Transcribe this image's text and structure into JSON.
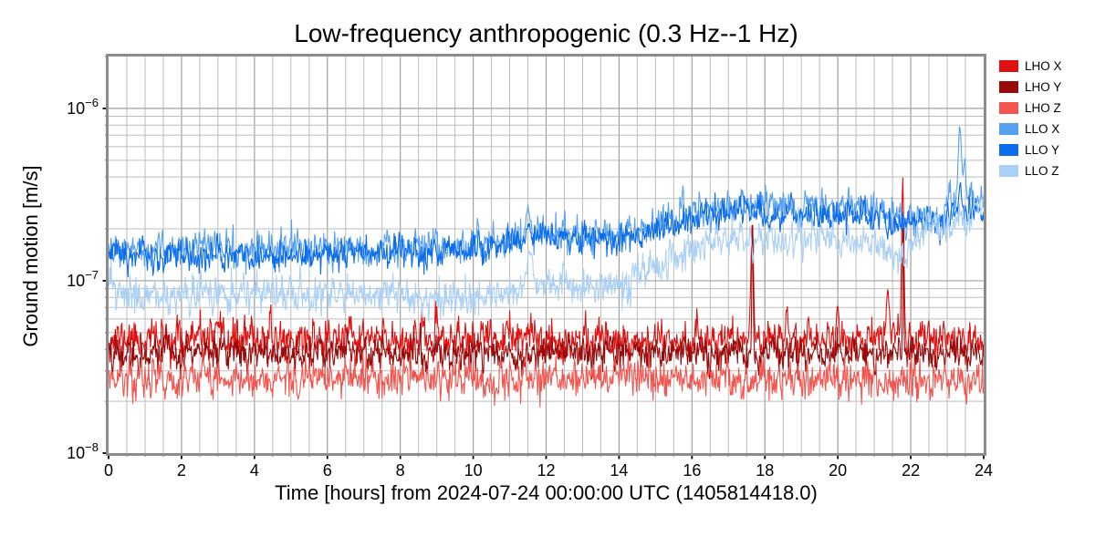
{
  "chart_data": {
    "type": "line",
    "title": "Low-frequency anthropogenic (0.3 Hz--1 Hz)",
    "xlabel": "Time [hours] from 2024-07-24 00:00:00 UTC (1405814418.0)",
    "ylabel": "Ground motion [m/s]",
    "x_range": [
      0,
      24
    ],
    "x_ticks": [
      0,
      2,
      4,
      6,
      8,
      10,
      12,
      14,
      16,
      18,
      20,
      22,
      24
    ],
    "x_minor_step": 0.5,
    "y_scale": "log",
    "ylim": [
      1e-08,
      2e-06
    ],
    "y_ticks": [
      {
        "value": 1e-08,
        "base": "10",
        "exp": "−8"
      },
      {
        "value": 1e-07,
        "base": "10",
        "exp": "−7"
      },
      {
        "value": 1e-06,
        "base": "10",
        "exp": "−6"
      }
    ],
    "grid": true,
    "legend_position": "outside-right",
    "frame_color": "#8c8c8c",
    "grid_minor_color": "#bdbdbd",
    "grid_major_color": "#a0a0a0",
    "samples_per_hour": 60,
    "series": [
      {
        "name": "LHO X",
        "color": "#e01111",
        "seed": 11,
        "noise_sigma_decades": 0.058,
        "envelope": [
          [
            0,
            4.6e-08
          ],
          [
            24,
            4.6e-08
          ]
        ],
        "spikes": [
          {
            "hour": 17.65,
            "peak": 2.2e-07,
            "width_hours": 0.05
          },
          {
            "hour": 18.6,
            "peak": 7e-08,
            "width_hours": 0.05
          },
          {
            "hour": 20.0,
            "peak": 7.5e-08,
            "width_hours": 0.04
          },
          {
            "hour": 21.37,
            "peak": 9.5e-08,
            "width_hours": 0.05
          },
          {
            "hour": 21.78,
            "peak": 3.6e-07,
            "width_hours": 0.045
          }
        ]
      },
      {
        "name": "LHO Y",
        "color": "#970b0b",
        "seed": 22,
        "noise_sigma_decades": 0.05,
        "envelope": [
          [
            0,
            3.8e-08
          ],
          [
            24,
            3.8e-08
          ]
        ],
        "spikes": [
          {
            "hour": 17.66,
            "peak": 2.35e-07,
            "width_hours": 0.025
          },
          {
            "hour": 21.79,
            "peak": 2.6e-07,
            "width_hours": 0.02
          }
        ]
      },
      {
        "name": "LHO Z",
        "color": "#f4544e",
        "seed": 33,
        "noise_sigma_decades": 0.055,
        "envelope": [
          [
            0,
            2.7e-08
          ],
          [
            24,
            2.7e-08
          ]
        ],
        "spikes": []
      },
      {
        "name": "LLO X",
        "color": "#57a1f0",
        "seed": 44,
        "noise_sigma_decades": 0.05,
        "envelope": [
          [
            0,
            1.5e-07
          ],
          [
            4,
            1.5e-07
          ],
          [
            8,
            1.55e-07
          ],
          [
            10,
            1.6e-07
          ],
          [
            12,
            1.9e-07
          ],
          [
            14,
            1.85e-07
          ],
          [
            15,
            2.1e-07
          ],
          [
            16,
            2.5e-07
          ],
          [
            17,
            2.7e-07
          ],
          [
            18,
            2.7e-07
          ],
          [
            19,
            2.6e-07
          ],
          [
            20,
            2.7e-07
          ],
          [
            21,
            2.6e-07
          ],
          [
            21.8,
            2.3e-07
          ],
          [
            22.5,
            2.4e-07
          ],
          [
            23.2,
            2.8e-07
          ],
          [
            23.6,
            3e-07
          ],
          [
            24,
            2.7e-07
          ]
        ],
        "spikes": [
          {
            "hour": 11.5,
            "peak": 2.6e-07,
            "width_hours": 0.08
          },
          {
            "hour": 23.35,
            "peak": 7.4e-07,
            "width_hours": 0.07
          },
          {
            "hour": 23.47,
            "peak": 5e-07,
            "width_hours": 0.05
          }
        ]
      },
      {
        "name": "LLO Y",
        "color": "#0b6cec",
        "seed": 55,
        "noise_sigma_decades": 0.046,
        "envelope": [
          [
            0,
            1.4e-07
          ],
          [
            4,
            1.4e-07
          ],
          [
            8,
            1.45e-07
          ],
          [
            10,
            1.5e-07
          ],
          [
            12,
            1.8e-07
          ],
          [
            14,
            1.75e-07
          ],
          [
            15,
            1.95e-07
          ],
          [
            16,
            2.3e-07
          ],
          [
            17,
            2.5e-07
          ],
          [
            19,
            2.4e-07
          ],
          [
            21,
            2.4e-07
          ],
          [
            21.8,
            2.1e-07
          ],
          [
            22.5,
            2.2e-07
          ],
          [
            23.3,
            2.5e-07
          ],
          [
            24,
            2.4e-07
          ]
        ],
        "spikes": [
          {
            "hour": 11.5,
            "peak": 2.2e-07,
            "width_hours": 0.06
          },
          {
            "hour": 23.35,
            "peak": 3.5e-07,
            "width_hours": 0.06
          }
        ]
      },
      {
        "name": "LLO Z",
        "color": "#abd0f5",
        "seed": 66,
        "noise_sigma_decades": 0.052,
        "envelope": [
          [
            0,
            8.8e-08
          ],
          [
            1,
            8.2e-08
          ],
          [
            3,
            8.6e-08
          ],
          [
            5,
            8.4e-08
          ],
          [
            7,
            8.6e-08
          ],
          [
            9,
            8e-08
          ],
          [
            10,
            8e-08
          ],
          [
            11,
            8.6e-08
          ],
          [
            12,
            9.4e-08
          ],
          [
            13,
            9e-08
          ],
          [
            14,
            9.6e-08
          ],
          [
            15,
            1.25e-07
          ],
          [
            16,
            1.55e-07
          ],
          [
            17,
            1.8e-07
          ],
          [
            18,
            1.72e-07
          ],
          [
            19,
            1.78e-07
          ],
          [
            20,
            1.7e-07
          ],
          [
            21,
            1.65e-07
          ],
          [
            21.8,
            1.35e-07
          ],
          [
            22.3,
            1.85e-07
          ],
          [
            23,
            2e-07
          ],
          [
            23.6,
            2.4e-07
          ],
          [
            24,
            2.7e-07
          ]
        ],
        "spikes": [
          {
            "hour": 11.55,
            "peak": 1.5e-07,
            "width_hours": 0.1
          }
        ]
      }
    ]
  }
}
